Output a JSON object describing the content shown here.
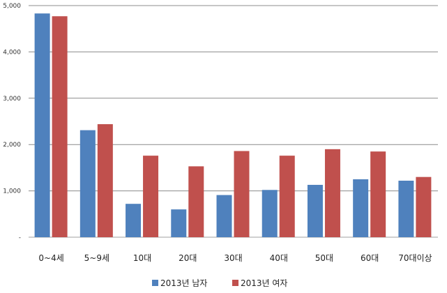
{
  "chart_data": {
    "type": "bar",
    "categories": [
      "0~4세",
      "5~9세",
      "10대",
      "20대",
      "30대",
      "40대",
      "50대",
      "60대",
      "70대이상"
    ],
    "series": [
      {
        "name": "2013년 남자",
        "color": "#4F81BD",
        "values": [
          4830,
          2310,
          720,
          600,
          910,
          1020,
          1130,
          1250,
          1220
        ]
      },
      {
        "name": "2013년 여자",
        "color": "#C0504D",
        "values": [
          4770,
          2440,
          1760,
          1530,
          1860,
          1760,
          1900,
          1850,
          1300
        ]
      }
    ],
    "yticks": [
      "-",
      "1,000",
      "2,000",
      "3,000",
      "4,000",
      "5,000"
    ],
    "ylim": [
      0,
      5000
    ],
    "grid": true,
    "legend_position": "bottom"
  }
}
